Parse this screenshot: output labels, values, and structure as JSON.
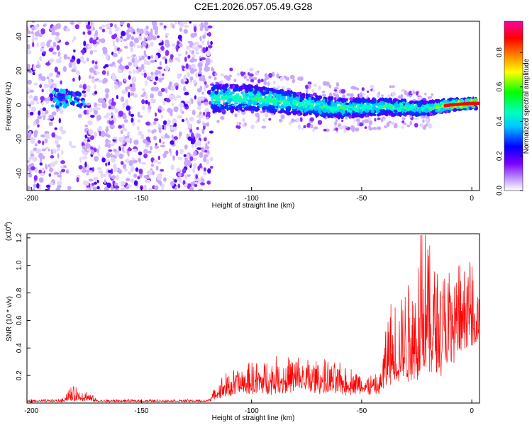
{
  "title": "C2E1.2026.057.05.49.G28",
  "spectrogram": {
    "xlabel": "Height of straight line (km)",
    "ylabel": "Frequency (Hz)",
    "xlim": [
      -202,
      3.5
    ],
    "ylim": [
      -50,
      49
    ],
    "xticks": [
      "-200",
      "-150",
      "-100",
      "-50",
      "0"
    ],
    "xtick_values": [
      -200,
      -150,
      -100,
      -50,
      0
    ],
    "yticks": [
      "-40",
      "-20",
      "0",
      "20",
      "40"
    ],
    "ytick_values": [
      -40,
      -20,
      0,
      20,
      40
    ]
  },
  "colorbar": {
    "label": "Normalized spectral amplitude",
    "range": [
      0,
      0.98
    ],
    "ticks": [
      "0.0",
      "0.2",
      "0.4",
      "0.6",
      "0.8"
    ],
    "tick_values": [
      0.0,
      0.2,
      0.4,
      0.6,
      0.8
    ]
  },
  "chart_data": [
    {
      "type": "heatmap",
      "title": "C2E1.2026.057.05.49.G28",
      "xlabel": "Height of straight line (km)",
      "ylabel": "Frequency (Hz)",
      "xlim": [
        -202,
        3.5
      ],
      "ylim": [
        -50,
        49
      ],
      "colorbar_label": "Normalized spectral amplitude",
      "colorbar_range": [
        0,
        0.98
      ],
      "colormap": [
        "#ffffff",
        "#d9c6ff",
        "#7a00ff",
        "#0000ff",
        "#00ffff",
        "#00ff00",
        "#ffff00",
        "#ff7f00",
        "#ff0000",
        "#ff00ff"
      ],
      "signal_track": [
        {
          "height_km": -190,
          "freq_hz": 4,
          "amp": 0.35
        },
        {
          "height_km": -180,
          "freq_hz": 5,
          "amp": 0.35
        },
        {
          "height_km": -115,
          "freq_hz": 4,
          "amp": 0.3
        },
        {
          "height_km": -100,
          "freq_hz": 4,
          "amp": 0.35
        },
        {
          "height_km": -80,
          "freq_hz": 1,
          "amp": 0.35
        },
        {
          "height_km": -60,
          "freq_hz": -2,
          "amp": 0.35
        },
        {
          "height_km": -40,
          "freq_hz": -1,
          "amp": 0.4
        },
        {
          "height_km": -20,
          "freq_hz": -2,
          "amp": 0.5
        },
        {
          "height_km": -10,
          "freq_hz": 0,
          "amp": 0.9
        },
        {
          "height_km": 0,
          "freq_hz": 1,
          "amp": 0.95
        }
      ]
    },
    {
      "type": "line",
      "xlabel": "Height of straight line (km)",
      "ylabel": "SNR (10 * v/v)",
      "y_multiplier_label": "(x10",
      "y_multiplier_exp": "4",
      "xlim": [
        -202,
        3.5
      ],
      "ylim": [
        0,
        1.23
      ],
      "color": "#ff0000",
      "xticks": [
        "-200",
        "-150",
        "-100",
        "-50",
        "0"
      ],
      "yticks": [
        "0.2",
        "0.4",
        "0.6",
        "0.8",
        "1.0",
        "1.2"
      ],
      "ytick_values": [
        0.2,
        0.4,
        0.6,
        0.8,
        1.0,
        1.2
      ],
      "envelope": [
        {
          "x": -202,
          "base": 0.01,
          "amp": 0.01
        },
        {
          "x": -186,
          "base": 0.01,
          "amp": 0.02
        },
        {
          "x": -183,
          "base": 0.02,
          "amp": 0.1
        },
        {
          "x": -176,
          "base": 0.02,
          "amp": 0.09
        },
        {
          "x": -170,
          "base": 0.01,
          "amp": 0.015
        },
        {
          "x": -120,
          "base": 0.01,
          "amp": 0.015
        },
        {
          "x": -113,
          "base": 0.06,
          "amp": 0.14
        },
        {
          "x": -100,
          "base": 0.09,
          "amp": 0.2
        },
        {
          "x": -80,
          "base": 0.1,
          "amp": 0.24
        },
        {
          "x": -60,
          "base": 0.09,
          "amp": 0.18
        },
        {
          "x": -50,
          "base": 0.08,
          "amp": 0.14
        },
        {
          "x": -42,
          "base": 0.08,
          "amp": 0.1
        },
        {
          "x": -38,
          "base": 0.15,
          "amp": 0.55
        },
        {
          "x": -30,
          "base": 0.2,
          "amp": 0.65
        },
        {
          "x": -22,
          "base": 0.25,
          "amp": 0.95
        },
        {
          "x": -15,
          "base": 0.3,
          "amp": 0.7
        },
        {
          "x": -8,
          "base": 0.4,
          "amp": 0.5
        },
        {
          "x": 0,
          "base": 0.5,
          "amp": 0.45
        },
        {
          "x": 3.5,
          "base": 0.5,
          "amp": 0.2
        }
      ]
    }
  ]
}
